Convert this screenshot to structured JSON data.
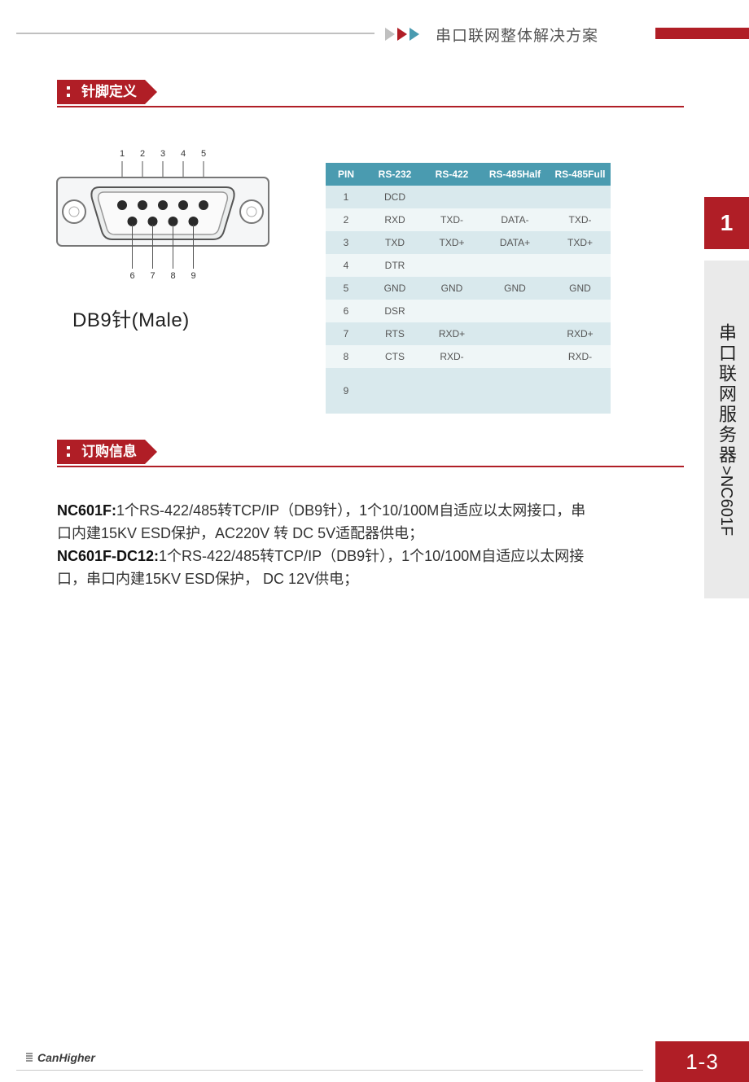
{
  "header": {
    "title": "串口联网整体解决方案",
    "arrow_colors": [
      "#c0c0c0",
      "#b01e26",
      "#4a9bb0"
    ]
  },
  "sections": {
    "pin_def": "针脚定义",
    "order_info": "订购信息"
  },
  "db9": {
    "caption": "DB9针(Male)",
    "top_labels": [
      "1",
      "2",
      "3",
      "4",
      "5"
    ],
    "bottom_labels": [
      "6",
      "7",
      "8",
      "9"
    ]
  },
  "pin_table": {
    "columns": [
      "PIN",
      "RS-232",
      "RS-422",
      "RS-485Half",
      "RS-485Full"
    ],
    "rows": [
      [
        "1",
        "DCD",
        "",
        "",
        ""
      ],
      [
        "2",
        "RXD",
        "TXD-",
        "DATA-",
        "TXD-"
      ],
      [
        "3",
        "TXD",
        "TXD+",
        "DATA+",
        "TXD+"
      ],
      [
        "4",
        "DTR",
        "",
        "",
        ""
      ],
      [
        "5",
        "GND",
        "GND",
        "GND",
        "GND"
      ],
      [
        "6",
        "DSR",
        "",
        "",
        ""
      ],
      [
        "7",
        "RTS",
        "RXD+",
        "",
        "RXD+"
      ],
      [
        "8",
        "CTS",
        "RXD-",
        "",
        "RXD-"
      ],
      [
        "9",
        "",
        "",
        "",
        ""
      ]
    ],
    "header_bg": "#4a9bb0",
    "row_even_bg": "#eff6f7",
    "row_odd_bg": "#d9e9ed"
  },
  "order": {
    "p1_bold": "NC601F:",
    "p1_text": "1个RS-422/485转TCP/IP（DB9针），1个10/100M自适应以太网接口，串口内建15KV ESD保护，AC220V 转 DC 5V适配器供电；",
    "p2_bold": "NC601F-DC12:",
    "p2_text": "1个RS-422/485转TCP/IP（DB9针），1个10/100M自适应以太网接口，串口内建15KV ESD保护， DC 12V供电；"
  },
  "side": {
    "chapter": "1",
    "label_cn": "串口联网服务器",
    "label_sep": ">",
    "label_en": "NC601F"
  },
  "footer": {
    "brand": "CanHigher",
    "page": "1-3"
  },
  "colors": {
    "brand_red": "#b01e26",
    "teal": "#4a9bb0",
    "gray": "#eaeaea"
  }
}
